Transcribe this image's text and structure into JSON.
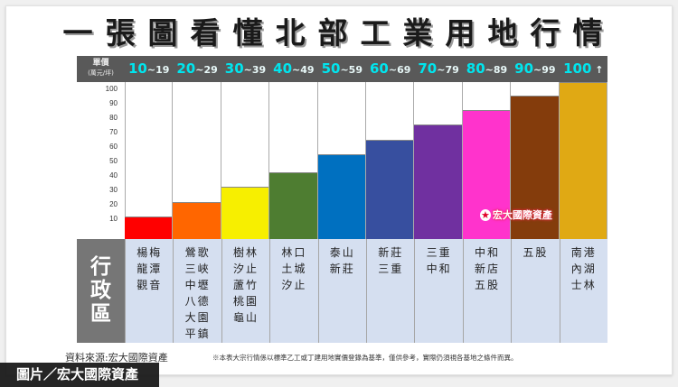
{
  "title": "一張圖看懂北部工業用地行情",
  "header": {
    "unit_label": "單價",
    "unit_sub": "(萬元/坪)"
  },
  "watermark": "宏大國際資產",
  "source": "資料來源:宏大國際資產",
  "note": "※本表大宗行情係以標準乙工或丁建用地實價登錄為基準，僅供參考，實際仍須視各基地之條件而異。",
  "credit": "圖片／宏大國際資產",
  "district_label": "行政區",
  "chart_data": {
    "type": "bar",
    "title": "一張圖看懂北部工業用地行情",
    "xlabel": "單價(萬元/坪)",
    "ylabel": "",
    "ylim": [
      0,
      100
    ],
    "yticks": [
      10,
      20,
      30,
      40,
      50,
      60,
      70,
      80,
      90,
      100
    ],
    "grid": false,
    "legend": "none",
    "categories": [
      "10~19",
      "20~29",
      "30~39",
      "40~49",
      "50~59",
      "60~69",
      "70~79",
      "80~89",
      "90~99",
      "100↑"
    ],
    "values": [
      13,
      23,
      34,
      44,
      56,
      66,
      77,
      87,
      97,
      100
    ],
    "colors": [
      "#ff0000",
      "#ff6600",
      "#f7ef00",
      "#4e7d31",
      "#0070c0",
      "#374f9f",
      "#7030a0",
      "#ff33cc",
      "#843c0c",
      "#e0a914"
    ],
    "districts": [
      [
        "楊梅",
        "龍潭",
        "觀音"
      ],
      [
        "鶯歌",
        "三峽",
        "中壢",
        "八德",
        "大園",
        "平鎮"
      ],
      [
        "樹林",
        "汐止",
        "蘆竹",
        "桃園",
        "龜山"
      ],
      [
        "林口",
        "土城",
        "汐止"
      ],
      [
        "泰山",
        "新莊"
      ],
      [
        "新莊",
        "三重"
      ],
      [
        "三重",
        "中和"
      ],
      [
        "中和",
        "新店",
        "五股"
      ],
      [
        "五股"
      ],
      [
        "南港",
        "內湖",
        "士林"
      ]
    ]
  },
  "columns": [
    {
      "lo": "10",
      "hi": "~19"
    },
    {
      "lo": "20",
      "hi": "~29"
    },
    {
      "lo": "30",
      "hi": "~39"
    },
    {
      "lo": "40",
      "hi": "~49"
    },
    {
      "lo": "50",
      "hi": "~59"
    },
    {
      "lo": "60",
      "hi": "~69"
    },
    {
      "lo": "70",
      "hi": "~79"
    },
    {
      "lo": "80",
      "hi": "~89"
    },
    {
      "lo": "90",
      "hi": "~99"
    },
    {
      "lo": "100",
      "hi": " ↑"
    }
  ]
}
